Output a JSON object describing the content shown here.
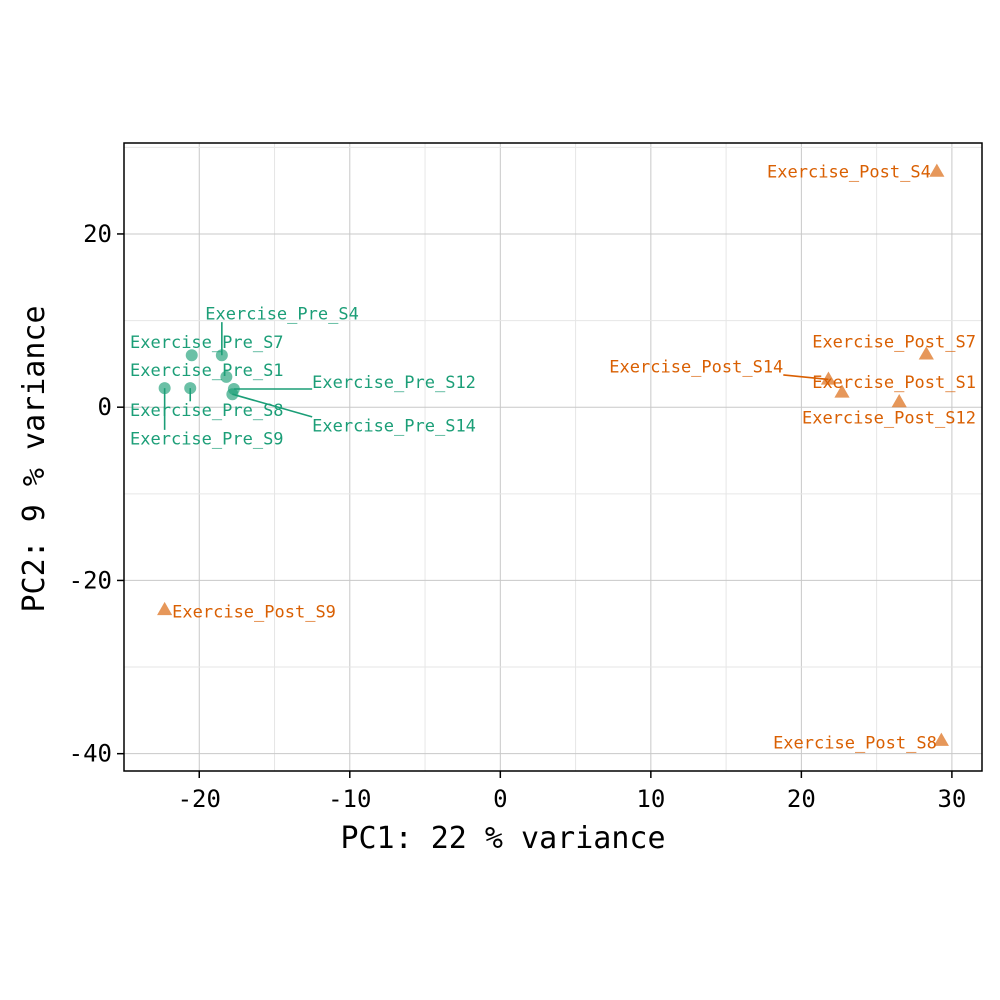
{
  "chart_data": {
    "type": "scatter",
    "title": "",
    "xlabel": "PC1:  22 % variance",
    "ylabel": "PC2:  9 % variance",
    "xlim": [
      -25,
      32
    ],
    "ylim": [
      -42,
      30.5
    ],
    "x_ticks": [
      -20,
      -10,
      0,
      10,
      20,
      30
    ],
    "y_ticks": [
      -40,
      -20,
      0,
      20
    ],
    "grid": true,
    "legend": "none",
    "series": [
      {
        "color": "#1B9E77",
        "marker": "circle",
        "points": [
          {
            "label": "Exercise_Pre_S4",
            "x": -18.5,
            "y": 6.0,
            "lx": -14.5,
            "ly": 10.8,
            "anchor": "middle"
          },
          {
            "label": "Exercise_Pre_S7",
            "x": -20.5,
            "y": 6.0,
            "lx": -24.6,
            "ly": 7.5,
            "anchor": "start"
          },
          {
            "label": "Exercise_Pre_S1",
            "x": -18.2,
            "y": 3.5,
            "lx": -24.6,
            "ly": 4.3,
            "anchor": "start"
          },
          {
            "label": "Exercise_Pre_S12",
            "x": -17.7,
            "y": 2.1,
            "lx": -12.5,
            "ly": 2.9,
            "anchor": "start"
          },
          {
            "label": "Exercise_Pre_S8",
            "x": -20.6,
            "y": 2.2,
            "lx": -24.6,
            "ly": -0.3,
            "anchor": "start"
          },
          {
            "label": "Exercise_Pre_S14",
            "x": -17.8,
            "y": 1.5,
            "lx": -12.5,
            "ly": -2.1,
            "anchor": "start"
          },
          {
            "label": "Exercise_Pre_S9",
            "x": -22.3,
            "y": 2.2,
            "lx": -24.6,
            "ly": -3.6,
            "anchor": "start"
          }
        ]
      },
      {
        "color": "#D95F02",
        "marker": "triangle",
        "points": [
          {
            "label": "Exercise_Post_S4",
            "x": 29.0,
            "y": 27.2,
            "lx": 28.6,
            "ly": 27.2,
            "anchor": "end"
          },
          {
            "label": "Exercise_Post_S7",
            "x": 28.3,
            "y": 6.1,
            "lx": 31.6,
            "ly": 7.6,
            "anchor": "end"
          },
          {
            "label": "Exercise_Post_S14",
            "x": 21.8,
            "y": 3.2,
            "lx": 18.8,
            "ly": 4.7,
            "anchor": "end"
          },
          {
            "label": "Exercise_Post_S1",
            "x": 22.7,
            "y": 1.7,
            "lx": 31.6,
            "ly": 2.9,
            "anchor": "end"
          },
          {
            "label": "Exercise_Post_S12",
            "x": 26.5,
            "y": 0.6,
            "lx": 31.6,
            "ly": -1.2,
            "anchor": "end"
          },
          {
            "label": "Exercise_Post_S9",
            "x": -22.3,
            "y": -23.4,
            "lx": -21.8,
            "ly": -23.6,
            "anchor": "start"
          },
          {
            "label": "Exercise_Post_S8",
            "x": 29.3,
            "y": -38.5,
            "lx": 29.0,
            "ly": -38.7,
            "anchor": "end"
          }
        ]
      }
    ]
  }
}
